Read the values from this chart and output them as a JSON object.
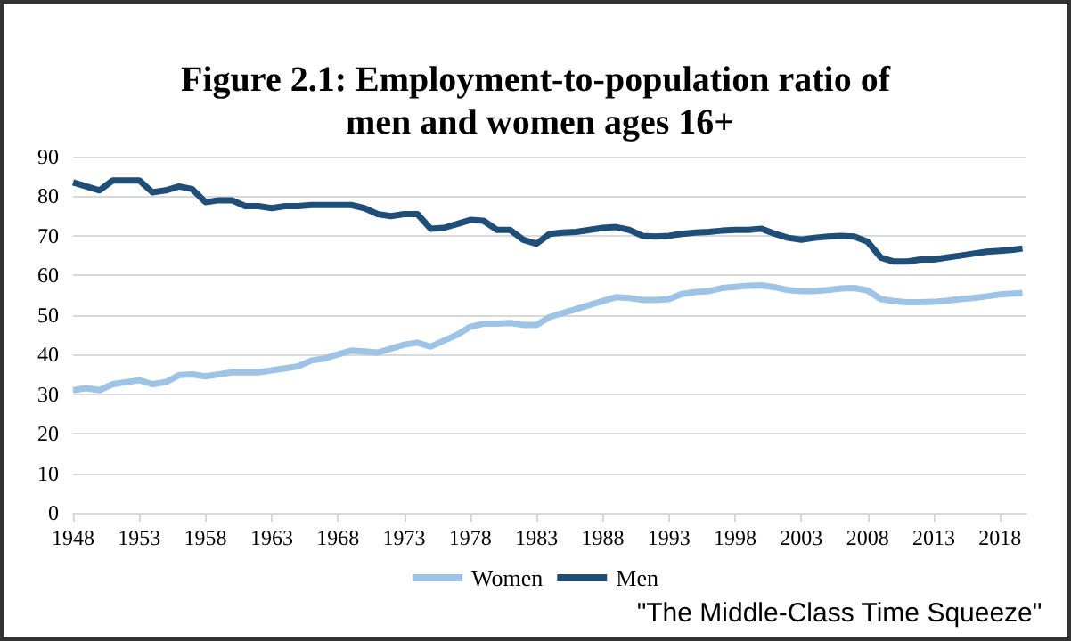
{
  "chart_data": {
    "type": "line",
    "title": "Figure 2.1: Employment-to-population ratio of men and women ages 16+",
    "annotations": [
      "\"The Middle-Class Time Squeeze\""
    ],
    "x": [
      1948,
      1949,
      1950,
      1951,
      1952,
      1953,
      1954,
      1955,
      1956,
      1957,
      1958,
      1959,
      1960,
      1961,
      1962,
      1963,
      1964,
      1965,
      1966,
      1967,
      1968,
      1969,
      1970,
      1971,
      1972,
      1973,
      1974,
      1975,
      1976,
      1977,
      1978,
      1979,
      1980,
      1981,
      1982,
      1983,
      1984,
      1985,
      1986,
      1987,
      1988,
      1989,
      1990,
      1991,
      1992,
      1993,
      1994,
      1995,
      1996,
      1997,
      1998,
      1999,
      2000,
      2001,
      2002,
      2003,
      2004,
      2005,
      2006,
      2007,
      2008,
      2009,
      2010,
      2011,
      2012,
      2013,
      2014,
      2015,
      2016,
      2017,
      2018,
      2019,
      2019.7
    ],
    "series": [
      {
        "name": "Women",
        "color": "#9dc3e6",
        "values": [
          31,
          31.5,
          31,
          32.5,
          33,
          33.5,
          32.5,
          33,
          34.8,
          35,
          34.5,
          35,
          35.5,
          35.5,
          35.5,
          36,
          36.5,
          37,
          38.5,
          39,
          40,
          41,
          40.8,
          40.5,
          41.5,
          42.5,
          43,
          42,
          43.5,
          45,
          47,
          47.8,
          47.8,
          48,
          47.5,
          47.5,
          49.5,
          50.5,
          51.5,
          52.5,
          53.5,
          54.5,
          54.3,
          53.8,
          53.8,
          54,
          55.3,
          55.8,
          56,
          56.8,
          57.1,
          57.4,
          57.5,
          57,
          56.3,
          56,
          56,
          56.3,
          56.7,
          56.8,
          56.2,
          54,
          53.5,
          53.2,
          53.2,
          53.3,
          53.6,
          54,
          54.3,
          54.7,
          55.2,
          55.4,
          55.6
        ]
      },
      {
        "name": "Men",
        "color": "#1f4e79",
        "values": [
          83.5,
          82.5,
          81.5,
          84,
          84,
          84,
          81,
          81.5,
          82.5,
          81.8,
          78.5,
          79,
          79,
          77.5,
          77.5,
          77,
          77.5,
          77.5,
          77.8,
          77.8,
          77.8,
          77.8,
          77,
          75.5,
          75,
          75.5,
          75.5,
          71.8,
          72,
          73,
          74,
          73.8,
          71.5,
          71.5,
          69,
          68,
          70.5,
          70.8,
          71,
          71.5,
          72,
          72.2,
          71.5,
          70,
          69.8,
          70,
          70.5,
          70.8,
          71,
          71.3,
          71.5,
          71.5,
          71.8,
          70.5,
          69.5,
          69,
          69.5,
          69.8,
          70,
          69.8,
          68.5,
          64.5,
          63.5,
          63.5,
          64,
          64,
          64.5,
          65,
          65.5,
          66,
          66.2,
          66.5,
          66.8
        ]
      }
    ],
    "xlim": [
      1948,
      2020
    ],
    "xticks": [
      1948,
      1953,
      1958,
      1963,
      1968,
      1973,
      1978,
      1983,
      1988,
      1993,
      1998,
      2003,
      2008,
      2013,
      2018
    ],
    "ylim": [
      0,
      90
    ],
    "yticks": [
      0,
      10,
      20,
      30,
      40,
      50,
      60,
      70,
      80,
      90
    ],
    "grid": "y",
    "legend": "bottom",
    "marker": "none",
    "line_style": "solid"
  }
}
